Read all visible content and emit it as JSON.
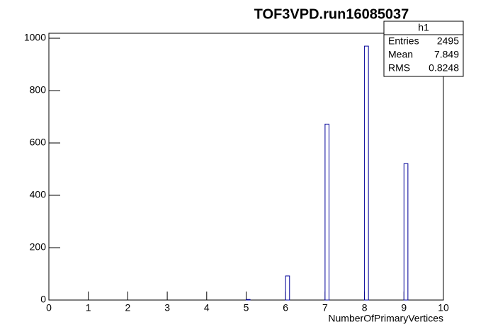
{
  "chart_data": {
    "type": "histogram",
    "title": "TOF3VPD.run16085037",
    "x_label": "NumberOfPrimaryVertices",
    "bins": [
      5,
      5.1,
      6,
      6.1,
      7,
      7.1,
      8,
      8.1,
      9,
      9.1
    ],
    "values": [
      2,
      0,
      92,
      0,
      672,
      0,
      970,
      0,
      521
    ],
    "color": "#000099",
    "xlim": [
      0,
      10
    ],
    "xticks": [
      0,
      1,
      2,
      3,
      4,
      5,
      6,
      7,
      8,
      9,
      10
    ],
    "ylim": [
      0,
      1019
    ],
    "yticks": [
      0,
      200,
      400,
      600,
      800,
      1000
    ],
    "stats": {
      "name": "h1",
      "rows": [
        [
          "Entries",
          2495
        ],
        [
          "Mean",
          7.849
        ],
        [
          "RMS",
          0.8248
        ]
      ]
    }
  }
}
